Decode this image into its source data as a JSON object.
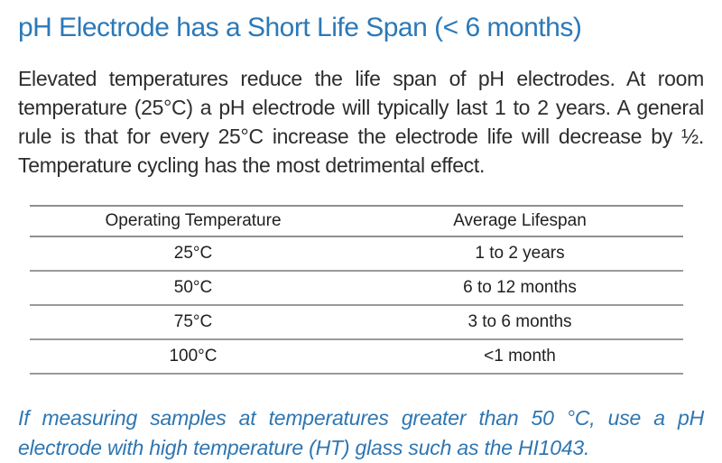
{
  "page": {
    "background": "#ffffff",
    "title_color": "#2b79b8",
    "body_text_color": "#2d2d2d",
    "note_color": "#2e76b2",
    "table_border_color": "#8f8f8f"
  },
  "header": {
    "title": "pH Electrode has a Short Life Span (< 6 months)"
  },
  "body": {
    "paragraph": "Elevated temperatures reduce the life span of pH electrodes. At room temperature (25°C) a pH electrode will typically last 1 to 2 years. A general rule is that for every 25°C increase the electrode life will decrease by ½. Temperature cycling has the most detrimental effect."
  },
  "table": {
    "headers": [
      "Operating Temperature",
      "Average Lifespan"
    ],
    "rows": [
      [
        "25°C",
        "1 to 2 years"
      ],
      [
        "50°C",
        "6 to 12 months"
      ],
      [
        "75°C",
        "3 to 6 months"
      ],
      [
        "100°C",
        "<1 month"
      ]
    ]
  },
  "note": {
    "text": "If measuring samples at temperatures greater than 50 °C, use a pH electrode with high temperature (HT) glass such as the HI1043."
  }
}
